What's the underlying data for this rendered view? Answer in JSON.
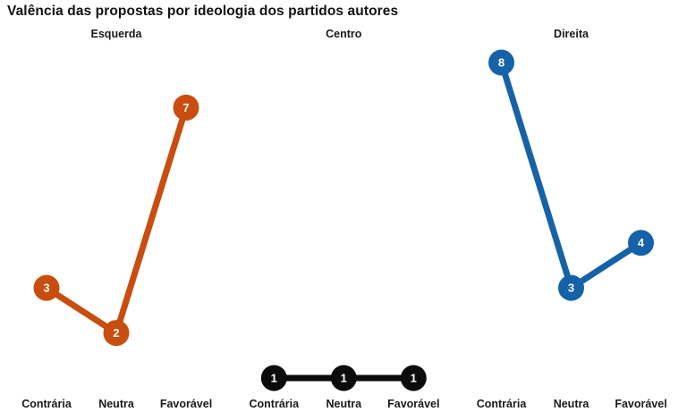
{
  "title": "Valência das propostas por ideologia dos partidos autores",
  "chart_data": {
    "type": "line",
    "title": "Valência das propostas por ideologia dos partidos autores",
    "categories": [
      "Contrária",
      "Neutra",
      "Favorável"
    ],
    "facets": [
      {
        "label": "Esquerda",
        "color": "#c84d0e",
        "values": [
          3,
          2,
          7
        ]
      },
      {
        "label": "Centro",
        "color": "#0b0b0b",
        "values": [
          1,
          1,
          1
        ]
      },
      {
        "label": "Direita",
        "color": "#1562a9",
        "values": [
          8,
          3,
          4
        ]
      }
    ],
    "point_label_color": "#ffffff",
    "value_range": [
      1,
      8
    ],
    "grid": false,
    "legend": "none",
    "xlabel": "",
    "ylabel": ""
  }
}
